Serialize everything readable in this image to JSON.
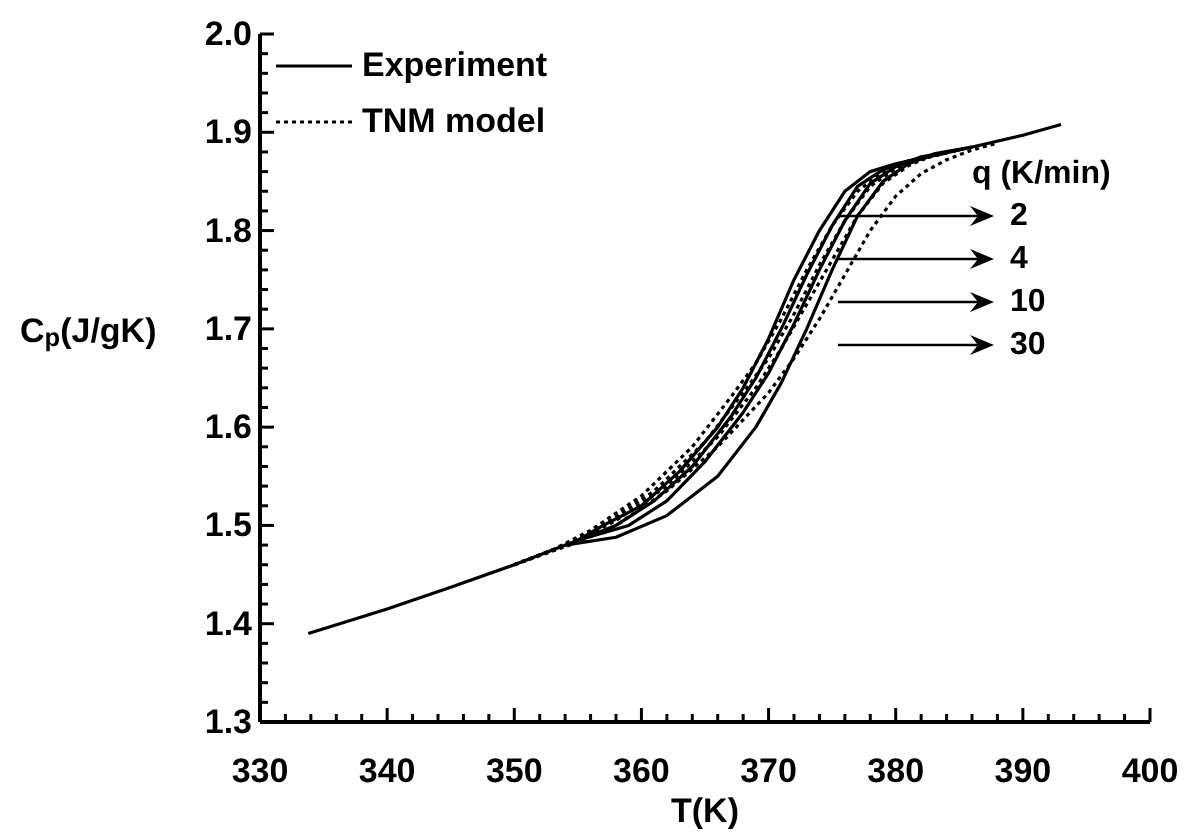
{
  "chart_data": {
    "type": "line",
    "xlabel": "T(K)",
    "ylabel": "C$_{p}$(J/gK)",
    "xlim": [
      330,
      400
    ],
    "ylim": [
      1.3,
      2.0
    ],
    "xticks": [
      330,
      {
        "value": 332,
        "label": null
      },
      {
        "value": 334,
        "label": null
      },
      {
        "value": 336,
        "label": null
      },
      {
        "value": 338,
        "label": null
      },
      340,
      {
        "value": 342,
        "label": null
      },
      {
        "value": 344,
        "label": null
      },
      {
        "value": 346,
        "label": null
      },
      {
        "value": 348,
        "label": null
      },
      350,
      {
        "value": 352,
        "label": null
      },
      {
        "value": 354,
        "label": null
      },
      {
        "value": 356,
        "label": null
      },
      {
        "value": 358,
        "label": null
      },
      360,
      {
        "value": 362,
        "label": null
      },
      {
        "value": 364,
        "label": null
      },
      {
        "value": 366,
        "label": null
      },
      {
        "value": 368,
        "label": null
      },
      370,
      {
        "value": 372,
        "label": null
      },
      {
        "value": 374,
        "label": null
      },
      {
        "value": 376,
        "label": null
      },
      {
        "value": 378,
        "label": null
      },
      380,
      {
        "value": 382,
        "label": null
      },
      {
        "value": 384,
        "label": null
      },
      {
        "value": 386,
        "label": null
      },
      {
        "value": 388,
        "label": null
      },
      390,
      {
        "value": 392,
        "label": null
      },
      {
        "value": 394,
        "label": null
      },
      {
        "value": 396,
        "label": null
      },
      {
        "value": 398,
        "label": null
      },
      400
    ],
    "yticks": [
      1.3,
      {
        "value": 1.32,
        "label": null
      },
      {
        "value": 1.34,
        "label": null
      },
      {
        "value": 1.36,
        "label": null
      },
      {
        "value": 1.38,
        "label": null
      },
      1.4,
      {
        "value": 1.42,
        "label": null
      },
      {
        "value": 1.44,
        "label": null
      },
      {
        "value": 1.46,
        "label": null
      },
      {
        "value": 1.48,
        "label": null
      },
      1.5,
      {
        "value": 1.52,
        "label": null
      },
      {
        "value": 1.54,
        "label": null
      },
      {
        "value": 1.56,
        "label": null
      },
      {
        "value": 1.58,
        "label": null
      },
      1.6,
      {
        "value": 1.62,
        "label": null
      },
      {
        "value": 1.64,
        "label": null
      },
      {
        "value": 1.66,
        "label": null
      },
      {
        "value": 1.68,
        "label": null
      },
      1.7,
      {
        "value": 1.72,
        "label": null
      },
      {
        "value": 1.74,
        "label": null
      },
      {
        "value": 1.76,
        "label": null
      },
      {
        "value": 1.78,
        "label": null
      },
      1.8,
      {
        "value": 1.82,
        "label": null
      },
      {
        "value": 1.84,
        "label": null
      },
      {
        "value": 1.86,
        "label": null
      },
      {
        "value": 1.88,
        "label": null
      },
      1.9,
      {
        "value": 1.92,
        "label": null
      },
      {
        "value": 1.94,
        "label": null
      },
      {
        "value": 1.96,
        "label": null
      },
      {
        "value": 1.98,
        "label": null
      },
      "2.0"
    ],
    "legend": "top left",
    "marker": "none",
    "series": [
      {
        "name": "Experiment",
        "color": "#000000",
        "line_style": "solid",
        "x": [
          333.8,
          340,
          345,
          350,
          355,
          357,
          360,
          363,
          366,
          368,
          370,
          372,
          374,
          376,
          378,
          380,
          385,
          390,
          393
        ],
        "values": [
          1.39,
          1.415,
          1.437,
          1.46,
          1.485,
          1.5,
          1.52,
          1.555,
          1.6,
          1.64,
          1.69,
          1.75,
          1.8,
          1.84,
          1.86,
          1.868,
          1.882,
          1.897,
          1.908
        ]
      },
      {
        "color": "#000000",
        "line_style": "solid",
        "x": [
          355,
          358,
          361,
          364,
          367,
          369,
          371,
          373,
          375,
          377,
          379,
          381,
          384
        ],
        "values": [
          1.485,
          1.5,
          1.525,
          1.56,
          1.61,
          1.65,
          1.7,
          1.755,
          1.805,
          1.845,
          1.862,
          1.871,
          1.879
        ]
      },
      {
        "color": "#000000",
        "line_style": "solid",
        "x": [
          355,
          359,
          362,
          365,
          368,
          370,
          372,
          374,
          376,
          378,
          380,
          382,
          385
        ],
        "values": [
          1.485,
          1.5,
          1.525,
          1.565,
          1.615,
          1.655,
          1.705,
          1.76,
          1.81,
          1.848,
          1.865,
          1.875,
          1.882
        ]
      },
      {
        "color": "#000000",
        "line_style": "solid",
        "x": [
          354,
          358,
          362,
          366,
          369,
          371,
          373,
          375,
          377,
          379,
          381,
          383,
          386
        ],
        "values": [
          1.48,
          1.488,
          1.51,
          1.55,
          1.6,
          1.645,
          1.7,
          1.76,
          1.815,
          1.85,
          1.868,
          1.878,
          1.885
        ]
      },
      {
        "name": "TNM model",
        "color": "#000000",
        "line_style": "dotted",
        "x": [
          350,
          353,
          356,
          360,
          364,
          367,
          369,
          371,
          373,
          375,
          377,
          379,
          381,
          384
        ],
        "values": [
          1.46,
          1.475,
          1.495,
          1.53,
          1.58,
          1.63,
          1.665,
          1.71,
          1.76,
          1.805,
          1.84,
          1.86,
          1.87,
          1.879
        ]
      },
      {
        "color": "#000000",
        "line_style": "dotted",
        "x": [
          350,
          354,
          357,
          361,
          365,
          368,
          370,
          372,
          374,
          376,
          378,
          380,
          382,
          385
        ],
        "values": [
          1.46,
          1.48,
          1.5,
          1.535,
          1.585,
          1.635,
          1.67,
          1.715,
          1.765,
          1.81,
          1.845,
          1.863,
          1.873,
          1.882
        ]
      },
      {
        "color": "#000000",
        "line_style": "dotted",
        "x": [
          350,
          355,
          358,
          362,
          366,
          369,
          371,
          373,
          375,
          377,
          379,
          381,
          383,
          386
        ],
        "values": [
          1.46,
          1.485,
          1.505,
          1.54,
          1.59,
          1.64,
          1.68,
          1.725,
          1.77,
          1.815,
          1.848,
          1.866,
          1.877,
          1.885
        ]
      },
      {
        "color": "#000000",
        "line_style": "dotted",
        "x": [
          350,
          355,
          358,
          362,
          366,
          370,
          372,
          374,
          376,
          378,
          380,
          382,
          384,
          386,
          388
        ],
        "values": [
          1.46,
          1.483,
          1.5,
          1.535,
          1.58,
          1.635,
          1.67,
          1.71,
          1.755,
          1.8,
          1.835,
          1.858,
          1.872,
          1.882,
          1.889
        ]
      }
    ],
    "annotations": [
      "q (K/min)",
      "2",
      "4",
      "10",
      "30"
    ]
  }
}
